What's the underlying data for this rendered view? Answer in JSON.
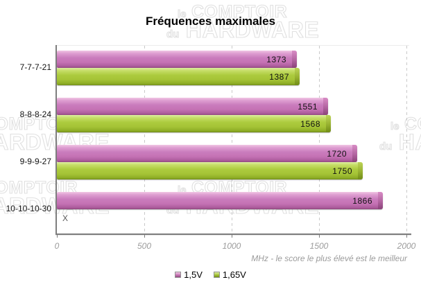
{
  "watermark": {
    "prefix1": "le",
    "line1": "COMPTOIR",
    "prefix2": "du",
    "line2": "HARDWARE"
  },
  "chart_data": {
    "type": "bar",
    "orientation": "horizontal",
    "title": "Fréquences maximales",
    "categories": [
      "7-7-7-21",
      "8-8-8-24",
      "9-9-9-27",
      "10-10-10-30"
    ],
    "series": [
      {
        "name": "1,5V",
        "color": "#c572b4",
        "values": [
          1373,
          1551,
          1720,
          1866
        ]
      },
      {
        "name": "1,65V",
        "color": "#a5c336",
        "values": [
          1387,
          1568,
          1750,
          null
        ]
      }
    ],
    "missing_marker": "X",
    "x_ticks": [
      0,
      500,
      1000,
      1500,
      2000
    ],
    "xlim": [
      0,
      2000
    ],
    "xlabel": "MHz - le score le plus élevé est le meilleur",
    "grid": "dashed-vertical",
    "legend_position": "bottom-center"
  }
}
